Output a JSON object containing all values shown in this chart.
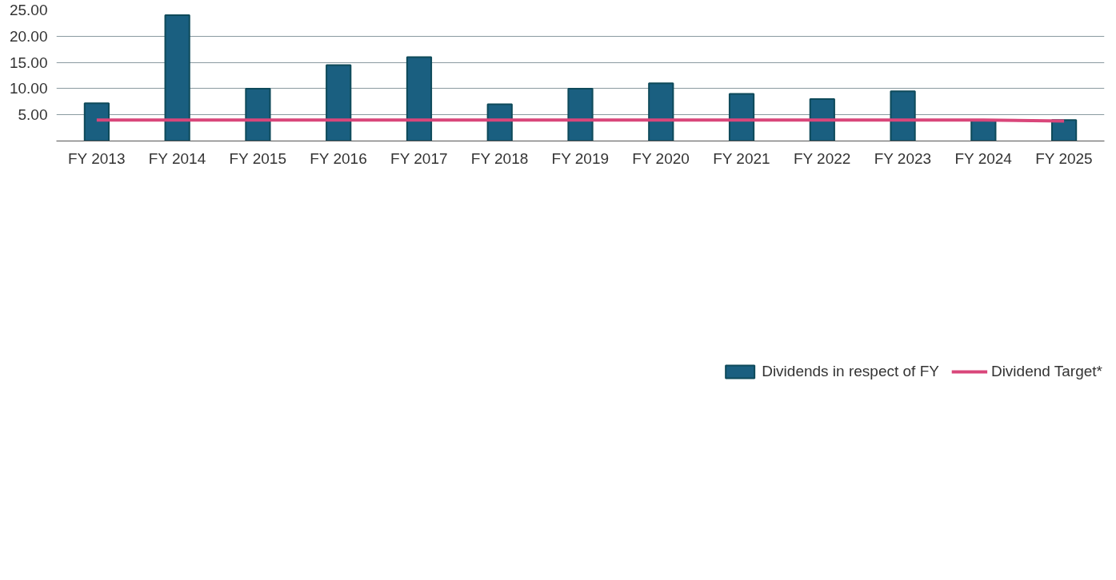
{
  "chart_data": {
    "type": "bar",
    "categories": [
      "FY 2013",
      "FY 2014",
      "FY 2015",
      "FY 2016",
      "FY 2017",
      "FY 2018",
      "FY 2019",
      "FY 2020",
      "FY 2021",
      "FY 2022",
      "FY 2023",
      "FY 2024",
      "FY 2025"
    ],
    "series": [
      {
        "name": "Dividends in respect of FY",
        "color": "#1a5f80",
        "values": [
          7.2,
          24,
          10,
          14.5,
          16,
          7,
          10,
          11,
          9,
          8,
          9.5,
          4,
          4
        ]
      },
      {
        "name": "Dividend Target*",
        "type": "line",
        "color": "#d9467a",
        "values": [
          4,
          4,
          4,
          4,
          4,
          4,
          4,
          4,
          4,
          4,
          4,
          4,
          3.8
        ]
      }
    ],
    "ylim": [
      0,
      25
    ],
    "yticks": [
      {
        "value": 5,
        "label": "5.00"
      },
      {
        "value": 10,
        "label": "10.00"
      },
      {
        "value": 15,
        "label": "15.00"
      },
      {
        "value": 20,
        "label": "20.00"
      },
      {
        "value": 25,
        "label": "25.00"
      }
    ],
    "grid": "y",
    "legend": "bottom"
  }
}
